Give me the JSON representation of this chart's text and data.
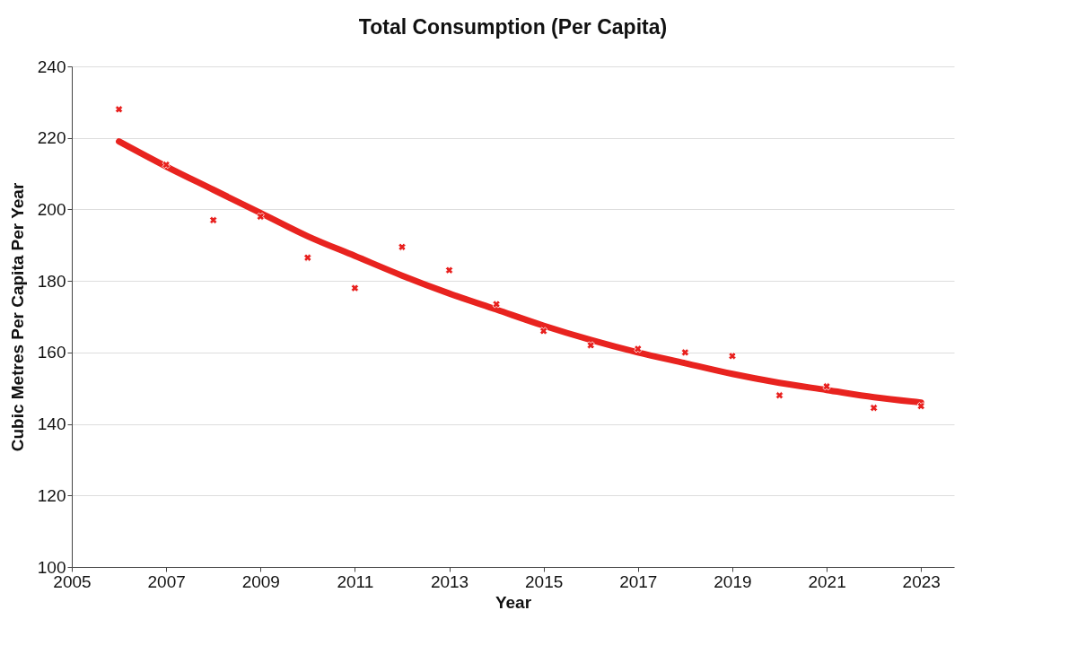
{
  "chart_data": {
    "type": "scatter",
    "title": "Total Consumption (Per Capita)",
    "xlabel": "Year",
    "ylabel": "Cubic Metres Per Capita Per Year",
    "x": [
      2006,
      2007,
      2008,
      2009,
      2010,
      2011,
      2012,
      2013,
      2014,
      2015,
      2016,
      2017,
      2018,
      2019,
      2020,
      2021,
      2022,
      2023
    ],
    "series": [
      {
        "type": "scatter",
        "marker": "cross",
        "color": "#e8201e",
        "values": [
          228,
          212.5,
          197,
          198,
          186.5,
          178,
          189.5,
          183,
          173.5,
          166,
          162,
          161,
          160,
          159,
          148,
          150.5,
          144.5,
          145
        ]
      },
      {
        "type": "line",
        "color": "#e8231f",
        "x": [
          2006,
          2007,
          2008,
          2009,
          2010,
          2011,
          2012,
          2013,
          2014,
          2015,
          2016,
          2017,
          2018,
          2019,
          2020,
          2021,
          2022,
          2023
        ],
        "values": [
          219,
          212,
          205.5,
          199,
          192.5,
          187,
          181.5,
          176.5,
          172,
          167.5,
          163.5,
          160,
          157,
          154,
          151.5,
          149.5,
          147.5,
          146
        ]
      }
    ],
    "xlim": [
      2005,
      2023.7
    ],
    "xticks": [
      2005,
      2007,
      2009,
      2011,
      2013,
      2015,
      2017,
      2019,
      2021,
      2023
    ],
    "ylim": [
      100,
      240
    ],
    "yticks": [
      100,
      120,
      140,
      160,
      180,
      200,
      220,
      240
    ],
    "grid": "y"
  }
}
